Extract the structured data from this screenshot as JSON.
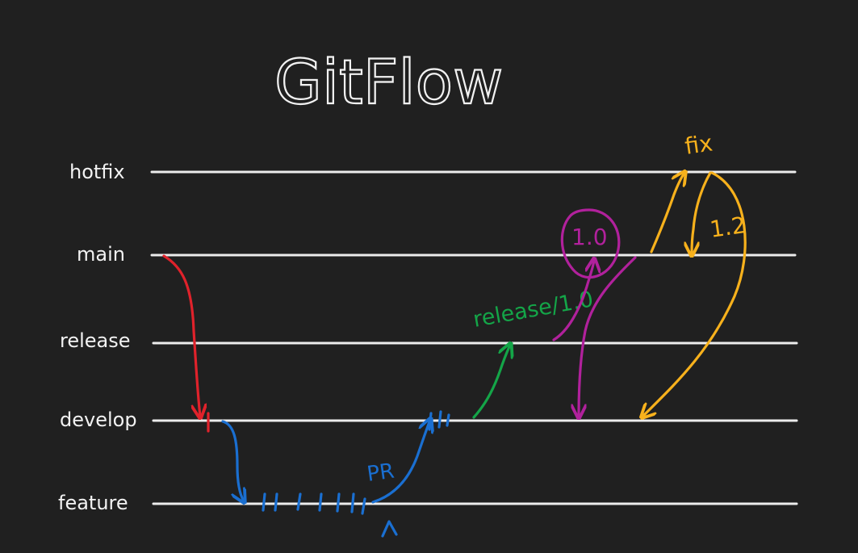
{
  "diagram": {
    "title": "GitFlow",
    "lanes": [
      {
        "id": "hotfix",
        "label": "hotfix"
      },
      {
        "id": "main",
        "label": "main"
      },
      {
        "id": "release",
        "label": "release"
      },
      {
        "id": "develop",
        "label": "develop"
      },
      {
        "id": "feature",
        "label": "feature"
      }
    ],
    "annotations": {
      "pr_label": "PR",
      "release_label": "release/1.0",
      "version_main_label": "1.0",
      "hotfix_fix_label": "fix",
      "hotfix_version_label": "1.2"
    },
    "colors": {
      "background": "#1f1f1f",
      "lanes": "#ececec",
      "red": "#e0222b",
      "blue": "#1a6fd1",
      "green": "#14a548",
      "magenta": "#b1219c",
      "orange": "#f7b11c",
      "text": "#f2f2f2"
    }
  }
}
